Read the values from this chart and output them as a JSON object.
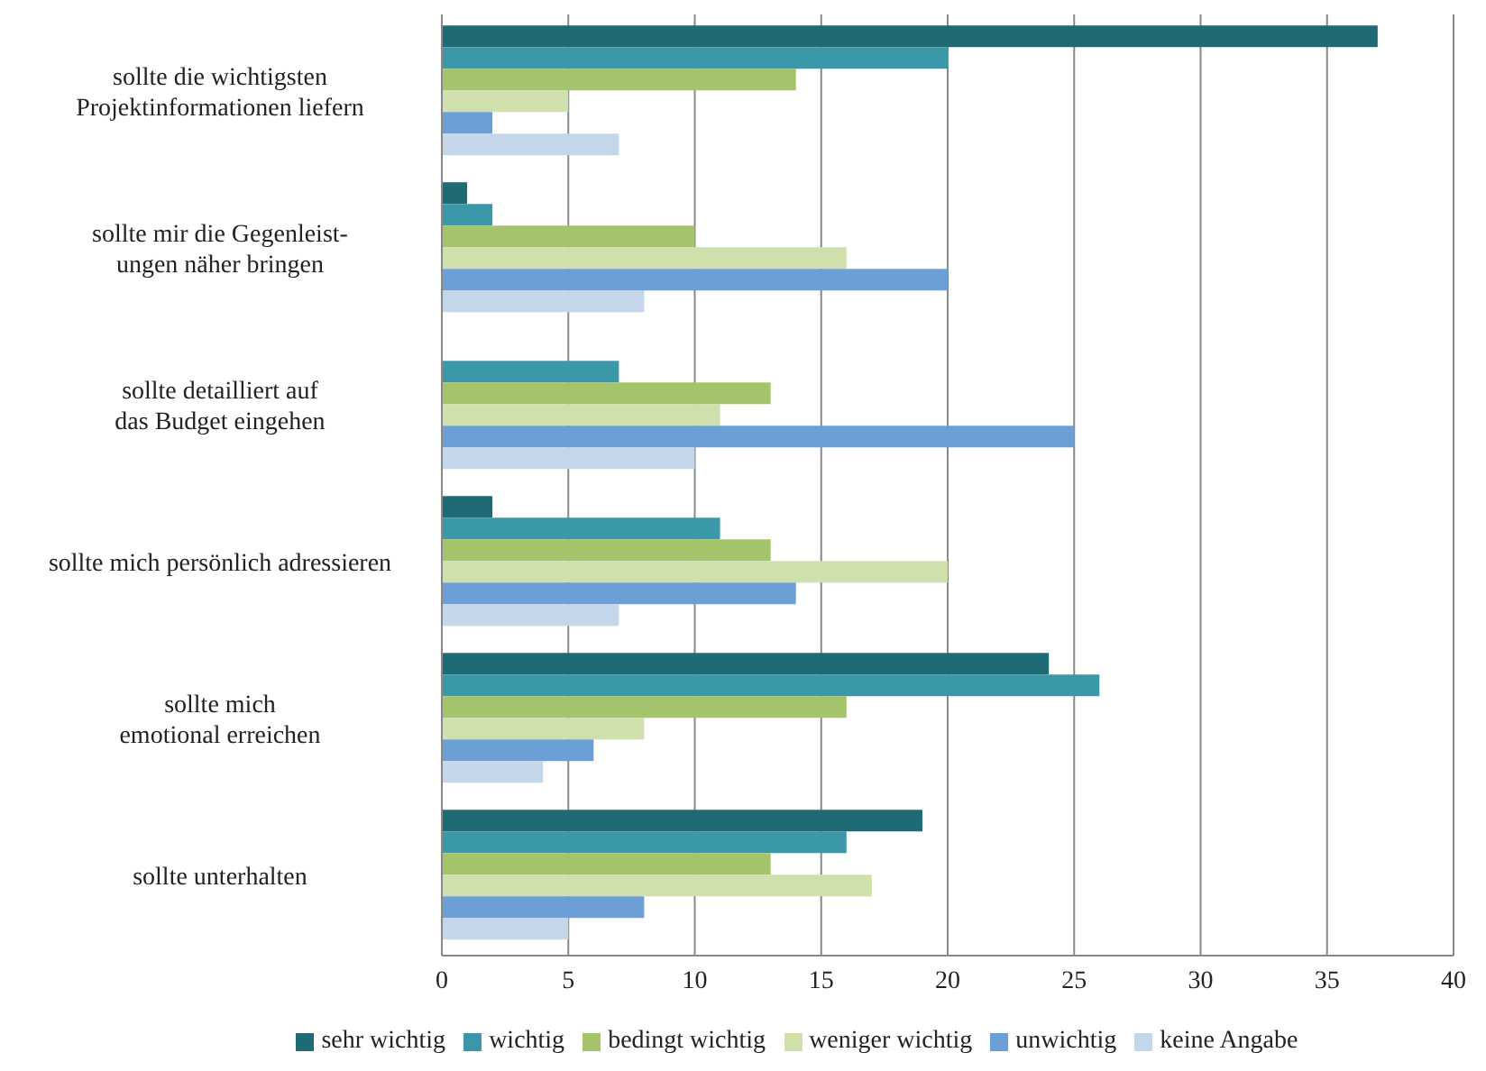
{
  "chart_data": {
    "type": "bar",
    "orientation": "horizontal",
    "categories": [
      "sollte die wichtigsten\nProjektinformationen liefern",
      "sollte mir die Gegenleist-\nungen näher bringen",
      "sollte detailliert auf\ndas Budget eingehen",
      "sollte mich persönlich adressieren",
      "sollte mich\nemotional erreichen",
      "sollte unterhalten"
    ],
    "series": [
      {
        "name": "sehr wichtig",
        "color": "#1f6b75",
        "values": [
          37,
          1,
          0,
          2,
          24,
          19
        ]
      },
      {
        "name": "wichtig",
        "color": "#3a98a8",
        "values": [
          20,
          2,
          7,
          11,
          26,
          16
        ]
      },
      {
        "name": "bedingt wichtig",
        "color": "#a3c46a",
        "values": [
          14,
          10,
          13,
          13,
          16,
          13
        ]
      },
      {
        "name": "weniger wichtig",
        "color": "#cfe0ac",
        "values": [
          5,
          16,
          11,
          20,
          8,
          17
        ]
      },
      {
        "name": "unwichtig",
        "color": "#6b9fd6",
        "values": [
          2,
          20,
          25,
          14,
          6,
          8
        ]
      },
      {
        "name": "keine Angabe",
        "color": "#c4d6ea",
        "values": [
          7,
          8,
          10,
          7,
          4,
          5
        ]
      }
    ],
    "xlim": [
      0,
      40
    ],
    "xticks": [
      0,
      5,
      10,
      15,
      20,
      25,
      30,
      35,
      40
    ],
    "grid": "x",
    "legend": "bottom"
  }
}
